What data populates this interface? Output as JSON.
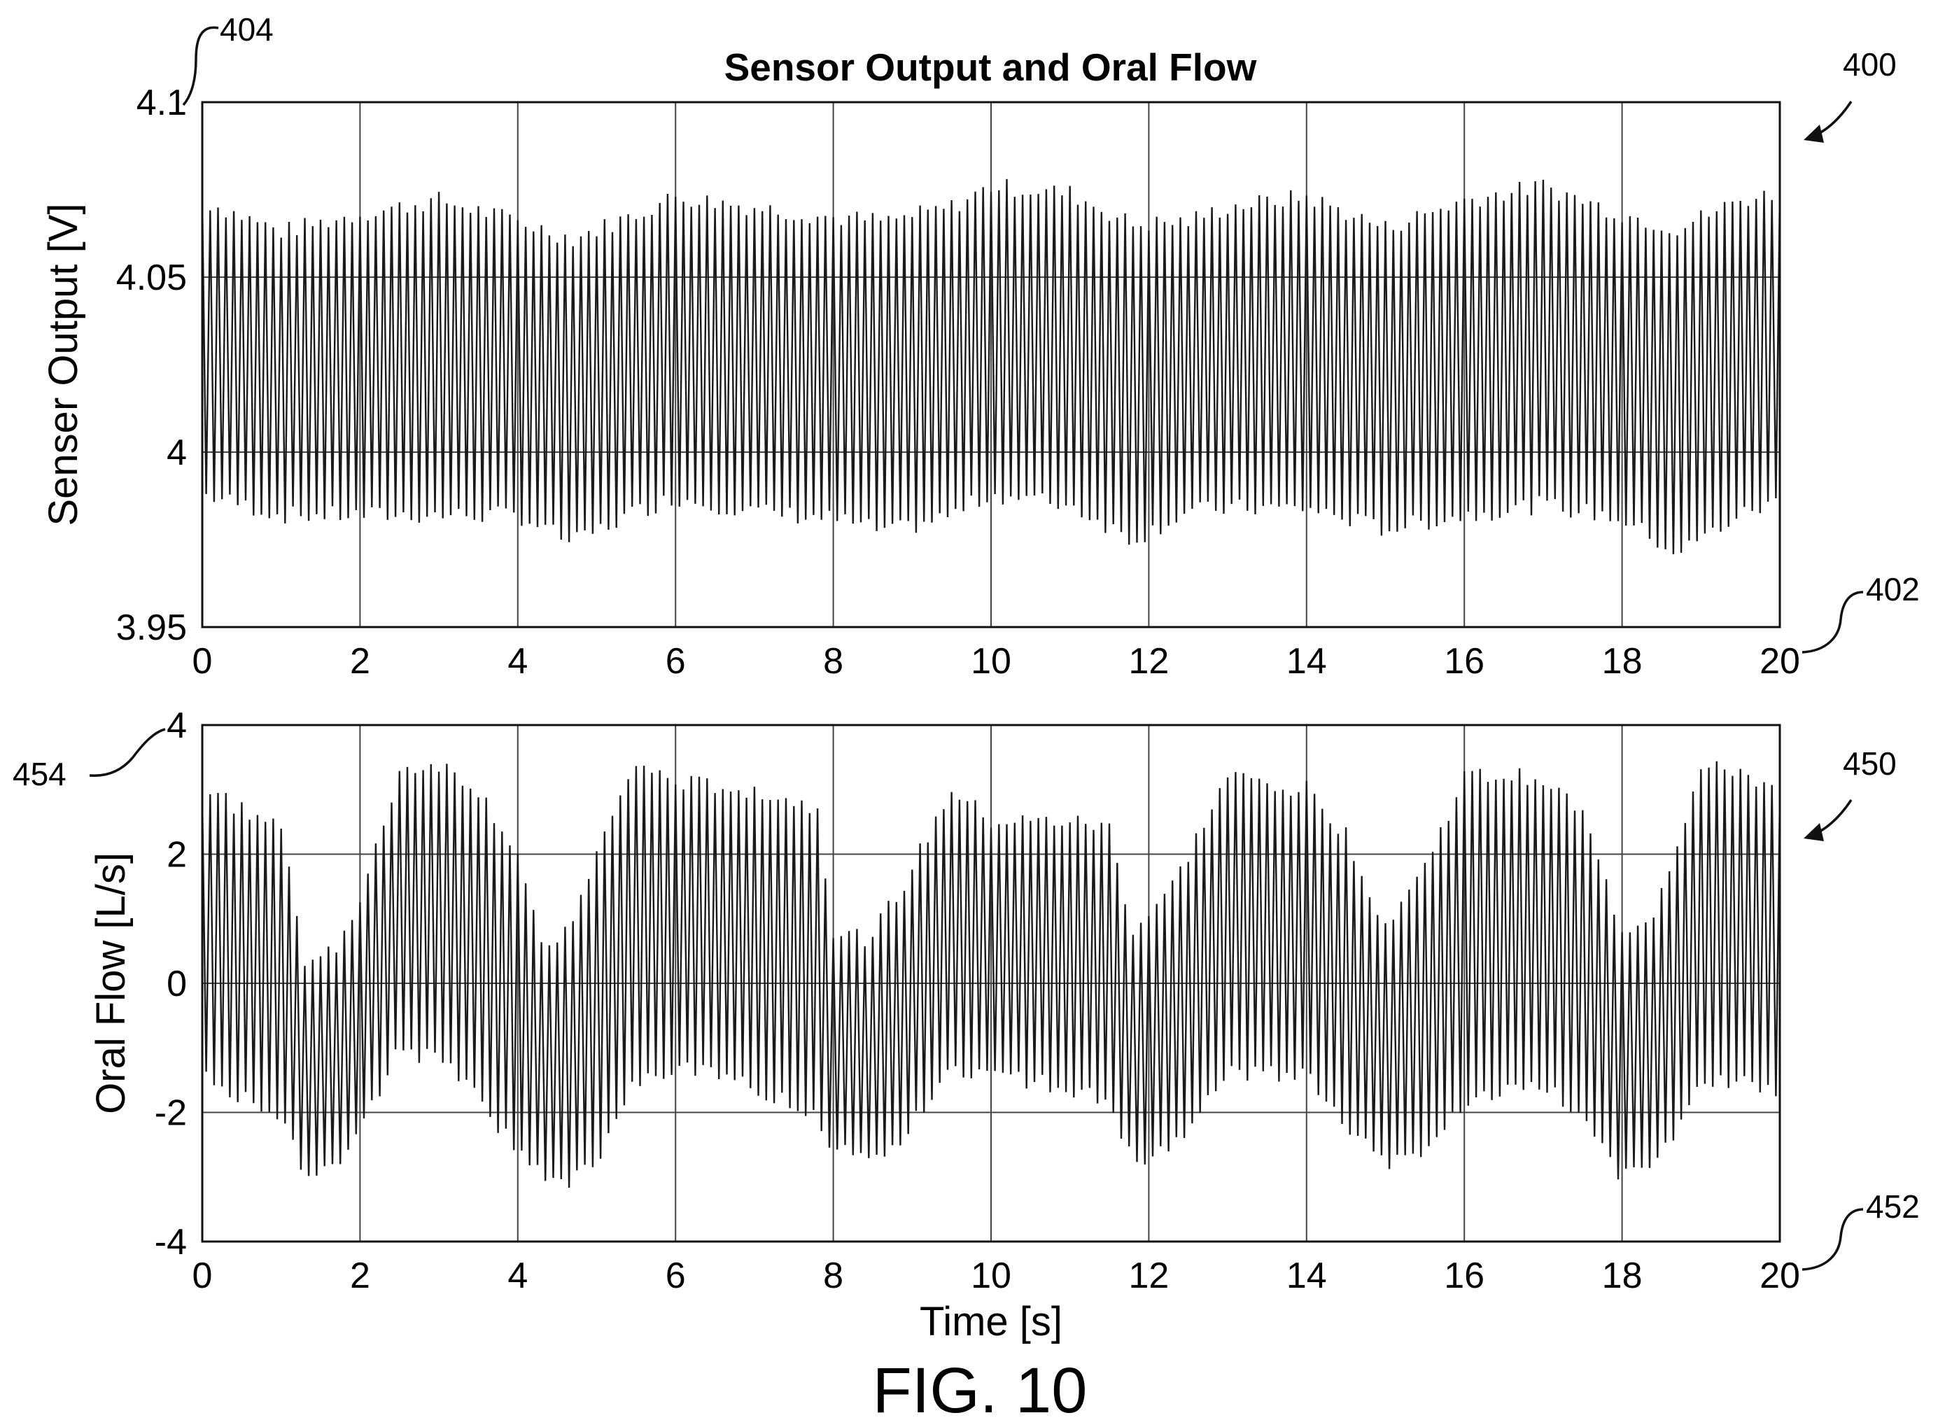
{
  "figure_label": "FIG. 10",
  "reference_numerals": {
    "top_figure": "400",
    "top_y_axis": "404",
    "top_x_axis": "402",
    "bottom_figure": "450",
    "bottom_y_axis": "454",
    "bottom_x_axis": "452"
  },
  "chart_data": [
    {
      "type": "line",
      "title": "Sensor Output and Oral Flow",
      "xlabel": "",
      "ylabel": "Senser Output [V]",
      "xlim": [
        0,
        20
      ],
      "ylim": [
        3.95,
        4.1
      ],
      "xticks": [
        0,
        2,
        4,
        6,
        8,
        10,
        12,
        14,
        16,
        18,
        20
      ],
      "xtick_labels": [
        "0",
        "2",
        "4",
        "6",
        "8",
        "10",
        "12",
        "14",
        "16",
        "18",
        "20"
      ],
      "yticks": [
        3.95,
        4.0,
        4.05,
        4.1
      ],
      "ytick_labels": [
        "3.95",
        "4",
        "4.05",
        "4.1"
      ],
      "grid": true,
      "signal": {
        "description": "rapid oscillation, ~10 cycles per second",
        "cycles_per_second": 10,
        "x": [
          0,
          1,
          2,
          3,
          4,
          4.7,
          5.5,
          6,
          7,
          8,
          8.7,
          9.5,
          10,
          11,
          11.8,
          12.5,
          13,
          14,
          15,
          16,
          17,
          18,
          18.7,
          19.5,
          20
        ],
        "peak": [
          4.072,
          4.063,
          4.068,
          4.072,
          4.066,
          4.061,
          4.068,
          4.073,
          4.07,
          4.067,
          4.066,
          4.07,
          4.076,
          4.074,
          4.065,
          4.066,
          4.07,
          4.073,
          4.064,
          4.072,
          4.076,
          4.068,
          4.064,
          4.072,
          4.074
        ],
        "trough": [
          3.988,
          3.982,
          3.982,
          3.982,
          3.982,
          3.974,
          3.983,
          3.987,
          3.983,
          3.981,
          3.977,
          3.982,
          3.988,
          3.985,
          3.975,
          3.983,
          3.984,
          3.984,
          3.978,
          3.982,
          3.985,
          3.981,
          3.971,
          3.982,
          3.986
        ]
      }
    },
    {
      "type": "line",
      "title": "",
      "xlabel": "Time [s]",
      "ylabel": "Oral Flow [L/s]",
      "xlim": [
        0,
        20
      ],
      "ylim": [
        -4,
        4
      ],
      "xticks": [
        0,
        2,
        4,
        6,
        8,
        10,
        12,
        14,
        16,
        18,
        20
      ],
      "xtick_labels": [
        "0",
        "2",
        "4",
        "6",
        "8",
        "10",
        "12",
        "14",
        "16",
        "18",
        "20"
      ],
      "yticks": [
        -4,
        -2,
        0,
        2,
        4
      ],
      "ytick_labels": [
        "-4",
        "-2",
        "0",
        "2",
        "4"
      ],
      "grid": true,
      "signal": {
        "description": "rapid oscillation, ~10 cycles per second, with slow breathing envelope",
        "cycles_per_second": 10,
        "x": [
          0,
          0.5,
          1.0,
          1.3,
          1.7,
          2.0,
          2.5,
          3.0,
          3.5,
          4.0,
          4.3,
          4.6,
          5.0,
          5.5,
          6.0,
          7.0,
          7.8,
          8.0,
          8.4,
          8.8,
          9.5,
          10.0,
          11.0,
          11.5,
          11.8,
          12.3,
          13.0,
          14.0,
          14.5,
          15.0,
          15.5,
          16.0,
          17.0,
          17.5,
          18.0,
          18.4,
          19.0,
          19.5,
          20.0
        ],
        "peak": [
          3.0,
          2.7,
          2.4,
          0.4,
          0.6,
          1.2,
          3.3,
          3.4,
          3.0,
          2.0,
          0.5,
          0.8,
          2.0,
          3.4,
          3.1,
          3.0,
          2.7,
          0.8,
          0.7,
          1.3,
          3.0,
          2.5,
          2.5,
          2.4,
          0.8,
          1.5,
          3.2,
          3.0,
          2.3,
          0.9,
          1.8,
          3.2,
          3.2,
          2.6,
          0.8,
          1.1,
          3.3,
          3.3,
          2.9
        ],
        "trough": [
          -1.3,
          -1.8,
          -2.0,
          -2.9,
          -2.9,
          -2.3,
          -1.0,
          -1.2,
          -1.8,
          -2.6,
          -3.0,
          -3.1,
          -2.8,
          -1.5,
          -1.3,
          -1.6,
          -2.0,
          -2.6,
          -2.7,
          -2.5,
          -1.3,
          -1.4,
          -1.6,
          -1.9,
          -2.8,
          -2.6,
          -1.4,
          -1.4,
          -2.2,
          -2.8,
          -2.6,
          -1.8,
          -1.6,
          -2.0,
          -3.0,
          -2.9,
          -1.6,
          -1.5,
          -1.7
        ]
      }
    }
  ]
}
